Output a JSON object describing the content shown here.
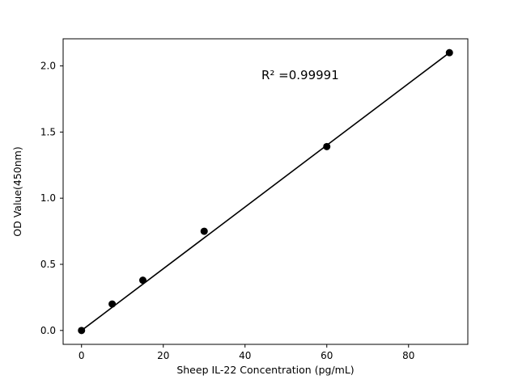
{
  "figure": {
    "background": "#ffffff"
  },
  "chart_data": {
    "type": "scatter",
    "title": "",
    "xlabel": "Sheep IL-22 Concentration (pg/mL)",
    "ylabel": "OD Value(450nm)",
    "x": [
      0,
      7.5,
      15,
      30,
      60,
      90
    ],
    "y": [
      0.0,
      0.2,
      0.38,
      0.75,
      1.39,
      2.1
    ],
    "fit_line": {
      "x": [
        0,
        90
      ],
      "y": [
        0.0,
        2.1
      ]
    },
    "annotation": {
      "text": "R² =0.99991",
      "x": 44,
      "y": 1.9
    },
    "xlim": [
      -4.5,
      94.5
    ],
    "ylim": [
      -0.105,
      2.205
    ],
    "xticks": [
      0,
      20,
      40,
      60,
      80
    ],
    "yticks": [
      0.0,
      0.5,
      1.0,
      1.5,
      2.0
    ],
    "grid": false,
    "legend_position": "none",
    "marker_color": "#000000",
    "line_color": "#000000",
    "axis_color": "#000000"
  }
}
